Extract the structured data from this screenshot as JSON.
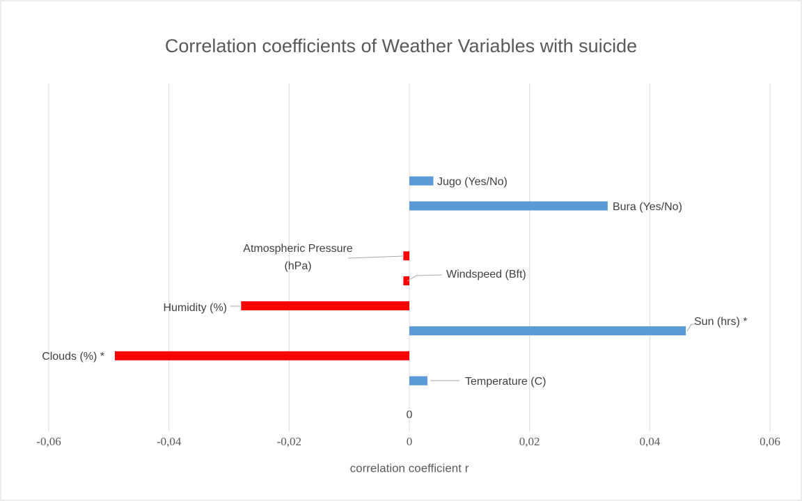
{
  "chart_data": {
    "type": "barh",
    "title": "Correlation coefficients of Weather Variables with suicide",
    "xlabel": "correlation coefficient r",
    "axis_annotation": "0",
    "categories": [
      "Jugo (Yes/No)",
      "Bura (Yes/No)",
      null,
      "Atmospheric Pressure (hPa)",
      "Windspeed (Bft)",
      "Humidity (%)",
      "Sun (hrs) *",
      "Clouds (%) *",
      "Temperature (C)"
    ],
    "values": [
      0.004,
      0.033,
      null,
      -0.001,
      -0.001,
      -0.028,
      0.046,
      -0.049,
      0.003
    ],
    "colors": [
      "#5b9bd5",
      "#5b9bd5",
      null,
      "#ff0000",
      "#ff0000",
      "#ff0000",
      "#5b9bd5",
      "#ff0000",
      "#5b9bd5"
    ],
    "xlim": [
      -0.06,
      0.06
    ],
    "xticks": [
      {
        "value": -0.06,
        "label": "-0,06"
      },
      {
        "value": -0.04,
        "label": "-0,04"
      },
      {
        "value": -0.02,
        "label": "-0,02"
      },
      0,
      {
        "value": 0.02,
        "label": "0,02"
      },
      {
        "value": 0.04,
        "label": "0,04"
      },
      {
        "value": 0.06,
        "label": "0,06"
      }
    ],
    "grid": true
  }
}
